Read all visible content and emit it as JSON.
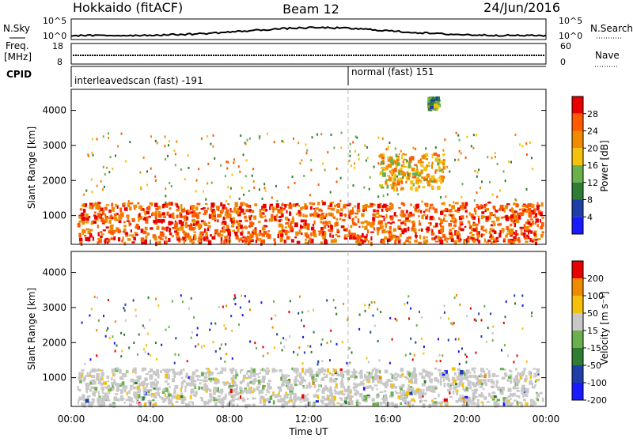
{
  "header": {
    "station": "Hokkaido (fitACF)",
    "beam": "Beam 12",
    "date": "24/Jun/2016"
  },
  "strips": {
    "nsky_label": "N.Sky",
    "nsearch_label": "N.Search",
    "nsky_ticks": [
      "10^5",
      "10^0"
    ],
    "nsearch_ticks": [
      "10^5",
      "10^0"
    ],
    "freq_label_1": "Freq.",
    "freq_label_2": "[MHz]",
    "freq_ticks": [
      "18",
      "8"
    ],
    "nave_label": "Nave",
    "nave_ticks": [
      "60",
      "0"
    ],
    "cpid_label": "CPID",
    "cpid_segments": [
      {
        "text": "interleavedscan (fast) -191",
        "start": "00:00",
        "end": "14:00"
      },
      {
        "text": "normal (fast) 151",
        "start": "14:00",
        "end": "24:00"
      }
    ]
  },
  "chart_data": [
    {
      "type": "heatmap",
      "name": "power",
      "xlabel": "",
      "ylabel": "Slant Range [km]",
      "x_ticks": [
        "00:00",
        "04:00",
        "08:00",
        "12:00",
        "16:00",
        "20:00",
        "00:00"
      ],
      "xlim_hours": [
        0,
        24
      ],
      "y_ticks": [
        1000,
        2000,
        3000,
        4000
      ],
      "ylim": [
        180,
        4600
      ],
      "colorbar": {
        "label": "Power [dB]",
        "ticks": [
          4,
          8,
          12,
          16,
          20,
          24,
          28
        ],
        "range": [
          0,
          32
        ],
        "colors": [
          "#1a1aff",
          "#1f3fa8",
          "#2e7d32",
          "#6ab04c",
          "#f4c20d",
          "#f08a00",
          "#ff5a00",
          "#e60000"
        ]
      },
      "echo_regions": [
        {
          "x": [
            0.3,
            23.8
          ],
          "y": [
            250,
            1400
          ],
          "level": 26,
          "desc": "main near-range band"
        },
        {
          "x": [
            15.5,
            18.8
          ],
          "y": [
            1800,
            2800
          ],
          "level": 20,
          "desc": "arc feature"
        },
        {
          "x": [
            18.0,
            18.5
          ],
          "y": [
            4100,
            4400
          ],
          "level": 12
        }
      ]
    },
    {
      "type": "heatmap",
      "name": "velocity",
      "xlabel": "Time UT",
      "ylabel": "Slant Range [km]",
      "x_ticks": [
        "00:00",
        "04:00",
        "08:00",
        "12:00",
        "16:00",
        "20:00",
        "00:00"
      ],
      "xlim_hours": [
        0,
        24
      ],
      "y_ticks": [
        1000,
        2000,
        3000,
        4000
      ],
      "ylim": [
        180,
        4600
      ],
      "colorbar": {
        "label": "Velocity [m s⁻¹]",
        "ticks": [
          200,
          100,
          50,
          15,
          -15,
          -50,
          -100,
          -200
        ],
        "colors": [
          "#1a1aff",
          "#1f3fa8",
          "#2e7d32",
          "#6ab04c",
          "#c8c8c8",
          "#f4c20d",
          "#f08a00",
          "#e60000"
        ]
      },
      "echo_regions": [
        {
          "x": [
            0.3,
            23.8
          ],
          "y": [
            250,
            1300
          ],
          "level": 0,
          "desc": "mostly ground scatter (grey)"
        }
      ]
    }
  ]
}
